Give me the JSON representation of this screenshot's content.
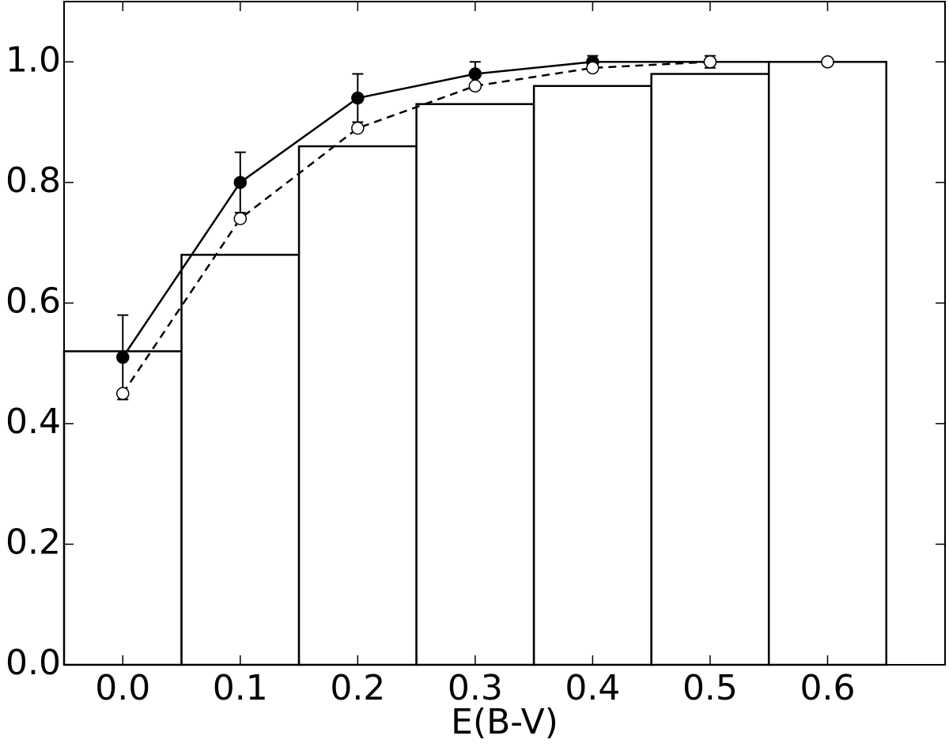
{
  "chart_data": {
    "type": "histogram",
    "xlabel": "E(B-V)",
    "bins": [
      -0.05,
      0.05,
      0.15,
      0.25,
      0.35,
      0.45,
      0.55,
      0.65
    ],
    "values": [
      0.52,
      0.68,
      0.86,
      0.93,
      0.96,
      0.98,
      1.0
    ],
    "color": "#ffffff",
    "series": [
      {
        "type": "line",
        "color": "#000000",
        "linestyle": "solid",
        "marker": "filled",
        "x": [
          0.0,
          0.1,
          0.2,
          0.3,
          0.4,
          0.5,
          0.6
        ],
        "values": [
          0.51,
          0.8,
          0.94,
          0.98,
          1.0,
          1.0,
          1.0
        ],
        "errors": [
          0.07,
          0.05,
          0.04,
          0.02,
          0.01,
          0.01,
          0
        ]
      },
      {
        "type": "line",
        "color": "#000000",
        "linestyle": "dashed",
        "marker": "open",
        "x": [
          0.0,
          0.1,
          0.2,
          0.3,
          0.4,
          0.5,
          0.6
        ],
        "values": [
          0.45,
          0.74,
          0.89,
          0.96,
          0.99,
          1.0,
          1.0
        ]
      }
    ],
    "xlim": [
      -0.05,
      0.7
    ],
    "ylim": [
      0,
      1.1
    ],
    "xticks": [
      {
        "value": 0,
        "label": "0.0"
      },
      0.1,
      0.2,
      0.3,
      0.4,
      0.5,
      0.6
    ],
    "yticks": [
      {
        "value": 0,
        "label": "0.0"
      },
      0.2,
      0.4,
      0.6,
      0.8,
      {
        "value": 1,
        "label": "1.0"
      }
    ]
  }
}
